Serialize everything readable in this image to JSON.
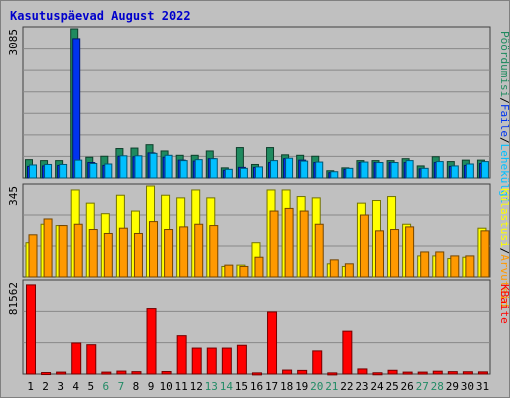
{
  "title": "Kasutuspäevad August 2022",
  "colors": {
    "hits": "#1f8a5f",
    "files": "#0033ee",
    "pages": "#00bfff",
    "visits": "#ffff00",
    "sites": "#ff9900",
    "kbytes": "#ff0000",
    "weekend": "#228b66",
    "weekday": "#000000"
  },
  "chart_data": [
    {
      "type": "bar",
      "panel": "top",
      "ymax": 3085,
      "ytick_label": "3085",
      "categories": [
        "1",
        "2",
        "3",
        "4",
        "5",
        "6",
        "7",
        "8",
        "9",
        "10",
        "11",
        "12",
        "13",
        "14",
        "15",
        "16",
        "17",
        "18",
        "19",
        "20",
        "21",
        "22",
        "23",
        "24",
        "25",
        "26",
        "27",
        "28",
        "29",
        "30",
        "31"
      ],
      "weekend_days": [
        6,
        7,
        13,
        14,
        20,
        21,
        27,
        28
      ],
      "legend": [
        {
          "label": "Pöördumisi",
          "color_key": "hits"
        },
        {
          "label": "/",
          "color_key": "weekday"
        },
        {
          "label": "Faile",
          "color_key": "files"
        },
        {
          "label": "/",
          "color_key": "weekday"
        },
        {
          "label": "Lehekülgi",
          "color_key": "pages"
        }
      ],
      "series": [
        {
          "key": "hits",
          "values": [
            380,
            360,
            360,
            3085,
            430,
            450,
            610,
            620,
            690,
            560,
            470,
            470,
            560,
            210,
            630,
            280,
            630,
            480,
            470,
            450,
            150,
            210,
            360,
            360,
            360,
            400,
            250,
            440,
            340,
            370,
            370
          ]
        },
        {
          "key": "files",
          "values": [
            240,
            250,
            260,
            2880,
            320,
            260,
            450,
            440,
            520,
            430,
            370,
            350,
            400,
            160,
            220,
            220,
            320,
            400,
            370,
            320,
            110,
            180,
            320,
            320,
            320,
            320,
            190,
            320,
            240,
            260,
            300
          ]
        },
        {
          "key": "pages",
          "values": [
            270,
            280,
            280,
            370,
            300,
            290,
            460,
            460,
            510,
            470,
            360,
            380,
            400,
            180,
            200,
            230,
            360,
            410,
            350,
            330,
            130,
            200,
            330,
            320,
            320,
            360,
            200,
            340,
            250,
            290,
            340
          ]
        }
      ]
    },
    {
      "type": "bar",
      "panel": "middle",
      "ymax": 345,
      "ytick_label": "345",
      "legend": [
        {
          "label": "Külastusi",
          "color_key": "visits"
        },
        {
          "label": "/",
          "color_key": "weekday"
        },
        {
          "label": "Arvuteid",
          "color_key": "sites"
        }
      ],
      "series": [
        {
          "key": "visits",
          "values": [
            130,
            200,
            195,
            330,
            280,
            240,
            310,
            250,
            345,
            310,
            300,
            330,
            300,
            40,
            45,
            130,
            330,
            330,
            305,
            300,
            50,
            40,
            280,
            290,
            305,
            200,
            80,
            80,
            70,
            75,
            185
          ]
        },
        {
          "key": "sites",
          "values": [
            160,
            220,
            195,
            200,
            180,
            165,
            185,
            165,
            210,
            180,
            190,
            200,
            195,
            45,
            40,
            75,
            250,
            260,
            250,
            200,
            65,
            50,
            235,
            175,
            180,
            190,
            95,
            95,
            80,
            80,
            175
          ]
        }
      ]
    },
    {
      "type": "bar",
      "panel": "bottom",
      "ymax": 81562,
      "ytick_label": "81562",
      "legend": [
        {
          "label": "KBaite",
          "color_key": "kbytes"
        }
      ],
      "series": [
        {
          "key": "kbytes",
          "values": [
            79000,
            1300,
            1700,
            27500,
            26000,
            1700,
            2600,
            2100,
            58000,
            2200,
            34000,
            23000,
            23000,
            23000,
            25500,
            1000,
            55000,
            3500,
            3200,
            20500,
            1000,
            38000,
            4500,
            1100,
            3300,
            1700,
            1700,
            2500,
            2100,
            2000,
            1900
          ]
        }
      ]
    }
  ]
}
